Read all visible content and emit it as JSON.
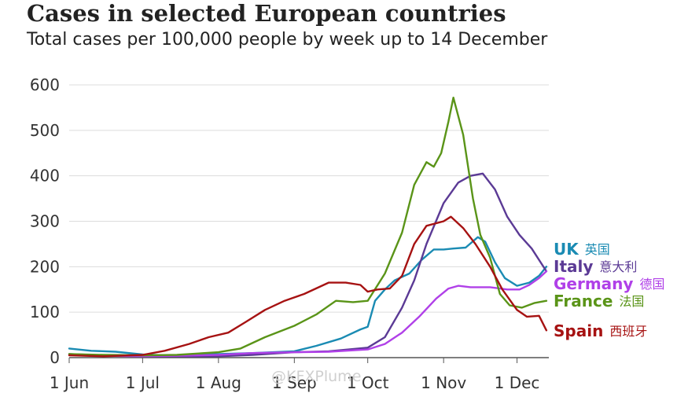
{
  "title": "Cases in selected European countries",
  "subtitle": "Total cases per 100,000 people by week up to 14 December",
  "watermark": "@KFXPlume",
  "chart_data": {
    "type": "line",
    "title": "Cases in selected European countries",
    "subtitle": "Total cases per 100,000 people by week up to 14 December",
    "ylim": [
      0,
      600
    ],
    "yticks": [
      0,
      100,
      200,
      300,
      400,
      500,
      600
    ],
    "xlim": [
      "2020-06-01",
      "2020-12-14"
    ],
    "xticks": [
      {
        "date": "2020-06-01",
        "label": "1 Jun"
      },
      {
        "date": "2020-07-01",
        "label": "1 Jul"
      },
      {
        "date": "2020-08-01",
        "label": "1 Aug"
      },
      {
        "date": "2020-09-01",
        "label": "1 Sep"
      },
      {
        "date": "2020-10-01",
        "label": "1 Oct"
      },
      {
        "date": "2020-11-01",
        "label": "1 Nov"
      },
      {
        "date": "2020-12-01",
        "label": "1 Dec"
      }
    ],
    "grid": true,
    "series": [
      {
        "name": "UK",
        "name_cn": "英国",
        "color": "#1a8bb3",
        "points": [
          [
            "2020-06-01",
            20
          ],
          [
            "2020-06-10",
            15
          ],
          [
            "2020-06-20",
            13
          ],
          [
            "2020-07-01",
            7
          ],
          [
            "2020-07-10",
            5
          ],
          [
            "2020-07-20",
            6
          ],
          [
            "2020-08-01",
            8
          ],
          [
            "2020-08-15",
            10
          ],
          [
            "2020-09-01",
            14
          ],
          [
            "2020-09-10",
            26
          ],
          [
            "2020-09-20",
            42
          ],
          [
            "2020-09-28",
            62
          ],
          [
            "2020-10-01",
            68
          ],
          [
            "2020-10-04",
            125
          ],
          [
            "2020-10-08",
            150
          ],
          [
            "2020-10-12",
            170
          ],
          [
            "2020-10-18",
            185
          ],
          [
            "2020-10-23",
            215
          ],
          [
            "2020-10-28",
            238
          ],
          [
            "2020-11-01",
            238
          ],
          [
            "2020-11-05",
            240
          ],
          [
            "2020-11-10",
            242
          ],
          [
            "2020-11-15",
            265
          ],
          [
            "2020-11-18",
            255
          ],
          [
            "2020-11-22",
            210
          ],
          [
            "2020-11-26",
            175
          ],
          [
            "2020-12-01",
            158
          ],
          [
            "2020-12-06",
            165
          ],
          [
            "2020-12-10",
            180
          ],
          [
            "2020-12-13",
            200
          ]
        ]
      },
      {
        "name": "Italy",
        "name_cn": "意大利",
        "color": "#5b3a95",
        "points": [
          [
            "2020-06-01",
            8
          ],
          [
            "2020-06-15",
            5
          ],
          [
            "2020-07-01",
            3
          ],
          [
            "2020-07-15",
            3
          ],
          [
            "2020-08-01",
            3
          ],
          [
            "2020-08-15",
            6
          ],
          [
            "2020-09-01",
            12
          ],
          [
            "2020-09-15",
            14
          ],
          [
            "2020-10-01",
            22
          ],
          [
            "2020-10-08",
            45
          ],
          [
            "2020-10-15",
            110
          ],
          [
            "2020-10-20",
            170
          ],
          [
            "2020-10-25",
            250
          ],
          [
            "2020-11-01",
            340
          ],
          [
            "2020-11-07",
            385
          ],
          [
            "2020-11-12",
            400
          ],
          [
            "2020-11-17",
            405
          ],
          [
            "2020-11-22",
            370
          ],
          [
            "2020-11-27",
            310
          ],
          [
            "2020-12-02",
            270
          ],
          [
            "2020-12-07",
            240
          ],
          [
            "2020-12-13",
            190
          ]
        ]
      },
      {
        "name": "Germany",
        "name_cn": "德国",
        "color": "#b040e8",
        "points": [
          [
            "2020-06-01",
            6
          ],
          [
            "2020-06-15",
            4
          ],
          [
            "2020-07-01",
            3
          ],
          [
            "2020-07-15",
            4
          ],
          [
            "2020-08-01",
            6
          ],
          [
            "2020-08-15",
            10
          ],
          [
            "2020-09-01",
            12
          ],
          [
            "2020-09-15",
            13
          ],
          [
            "2020-10-01",
            18
          ],
          [
            "2020-10-08",
            30
          ],
          [
            "2020-10-15",
            55
          ],
          [
            "2020-10-22",
            90
          ],
          [
            "2020-10-29",
            130
          ],
          [
            "2020-11-03",
            152
          ],
          [
            "2020-11-07",
            158
          ],
          [
            "2020-11-12",
            155
          ],
          [
            "2020-11-20",
            155
          ],
          [
            "2020-11-27",
            150
          ],
          [
            "2020-12-02",
            150
          ],
          [
            "2020-12-06",
            160
          ],
          [
            "2020-12-10",
            175
          ],
          [
            "2020-12-13",
            190
          ]
        ]
      },
      {
        "name": "France",
        "name_cn": "法国",
        "color": "#5a9418",
        "points": [
          [
            "2020-06-01",
            8
          ],
          [
            "2020-06-15",
            6
          ],
          [
            "2020-07-01",
            5
          ],
          [
            "2020-07-15",
            6
          ],
          [
            "2020-08-01",
            12
          ],
          [
            "2020-08-10",
            20
          ],
          [
            "2020-08-20",
            45
          ],
          [
            "2020-09-01",
            70
          ],
          [
            "2020-09-10",
            95
          ],
          [
            "2020-09-18",
            125
          ],
          [
            "2020-09-25",
            122
          ],
          [
            "2020-10-01",
            125
          ],
          [
            "2020-10-08",
            185
          ],
          [
            "2020-10-15",
            275
          ],
          [
            "2020-10-20",
            380
          ],
          [
            "2020-10-25",
            430
          ],
          [
            "2020-10-28",
            420
          ],
          [
            "2020-10-31",
            450
          ],
          [
            "2020-11-03",
            520
          ],
          [
            "2020-11-05",
            572
          ],
          [
            "2020-11-09",
            490
          ],
          [
            "2020-11-13",
            350
          ],
          [
            "2020-11-16",
            270
          ],
          [
            "2020-11-20",
            220
          ],
          [
            "2020-11-24",
            140
          ],
          [
            "2020-11-28",
            115
          ],
          [
            "2020-12-03",
            110
          ],
          [
            "2020-12-08",
            120
          ],
          [
            "2020-12-13",
            125
          ]
        ]
      },
      {
        "name": "Spain",
        "name_cn": "西班牙",
        "color": "#a61212",
        "points": [
          [
            "2020-06-01",
            5
          ],
          [
            "2020-06-15",
            3
          ],
          [
            "2020-07-01",
            6
          ],
          [
            "2020-07-10",
            15
          ],
          [
            "2020-07-20",
            30
          ],
          [
            "2020-07-28",
            45
          ],
          [
            "2020-08-05",
            55
          ],
          [
            "2020-08-12",
            78
          ],
          [
            "2020-08-20",
            105
          ],
          [
            "2020-08-28",
            125
          ],
          [
            "2020-09-05",
            140
          ],
          [
            "2020-09-15",
            165
          ],
          [
            "2020-09-22",
            165
          ],
          [
            "2020-09-28",
            160
          ],
          [
            "2020-10-01",
            145
          ],
          [
            "2020-10-05",
            150
          ],
          [
            "2020-10-10",
            152
          ],
          [
            "2020-10-15",
            180
          ],
          [
            "2020-10-20",
            250
          ],
          [
            "2020-10-25",
            290
          ],
          [
            "2020-11-01",
            300
          ],
          [
            "2020-11-04",
            310
          ],
          [
            "2020-11-09",
            285
          ],
          [
            "2020-11-14",
            250
          ],
          [
            "2020-11-20",
            200
          ],
          [
            "2020-11-25",
            150
          ],
          [
            "2020-12-01",
            105
          ],
          [
            "2020-12-05",
            90
          ],
          [
            "2020-12-10",
            92
          ],
          [
            "2020-12-13",
            60
          ]
        ]
      }
    ]
  }
}
